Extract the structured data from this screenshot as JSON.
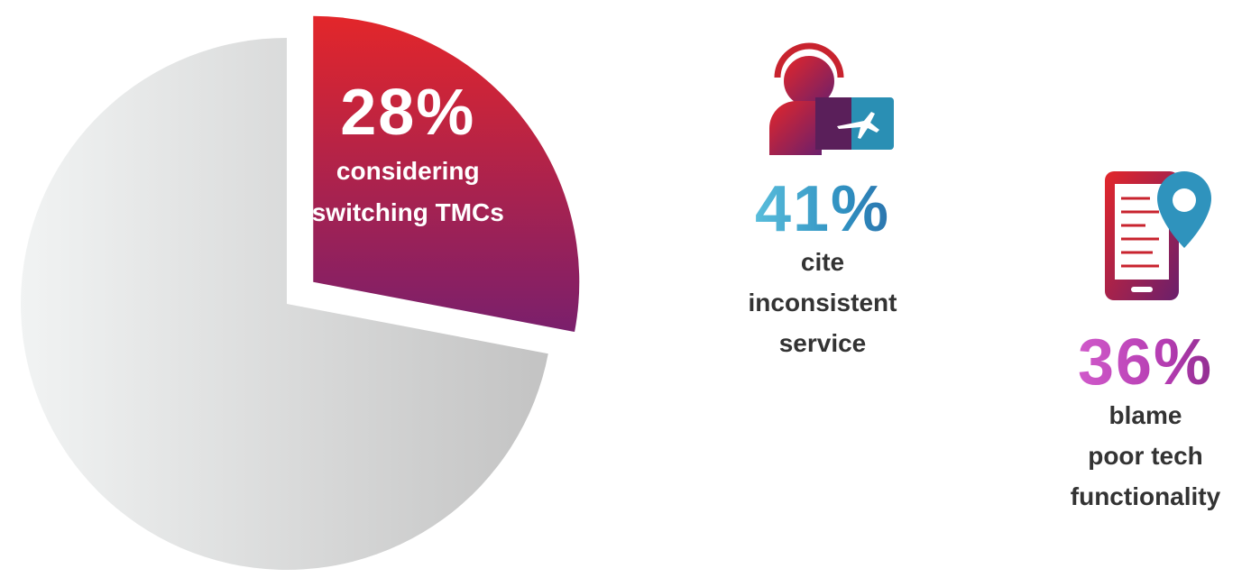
{
  "chart_data": {
    "type": "pie",
    "categories": [
      "considering switching TMCs",
      null
    ],
    "values": [
      28,
      72
    ],
    "value_labels": [
      "28%",
      null
    ],
    "exploded": [
      true,
      false
    ]
  },
  "stats": [
    {
      "value": "41%",
      "lines": [
        "cite",
        "inconsistent",
        "service"
      ]
    },
    {
      "value": "36%",
      "lines": [
        "blame",
        "poor tech",
        "functionality"
      ]
    }
  ]
}
